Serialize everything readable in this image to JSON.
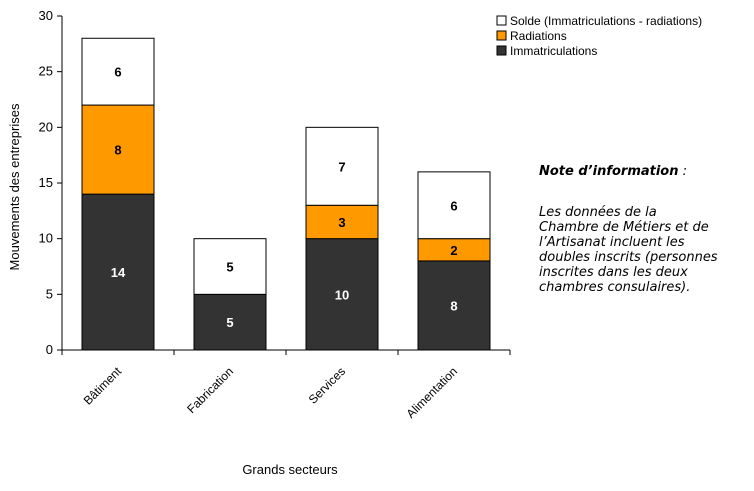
{
  "chart_data": {
    "type": "bar",
    "stacked": true,
    "categories": [
      "Bâtiment",
      "Fabrication",
      "Services",
      "Alimentation"
    ],
    "series": [
      {
        "name": "Immatriculations",
        "values": [
          14,
          5,
          10,
          8
        ],
        "color": "#333333",
        "label_color": "#ffffff"
      },
      {
        "name": "Radiations",
        "values": [
          8,
          0,
          3,
          2
        ],
        "color": "#ff9900",
        "label_color": "#000000"
      },
      {
        "name": "Solde (Immatriculations - radiations)",
        "values": [
          6,
          5,
          7,
          6
        ],
        "color": "#ffffff",
        "label_color": "#000000"
      }
    ],
    "title": "",
    "xlabel": "Grands secteurs",
    "ylabel": "Mouvements des entreprises",
    "ylim": [
      0,
      30
    ],
    "yticks": [
      0,
      5,
      10,
      15,
      20,
      25,
      30
    ],
    "grid": false,
    "legend_position": "top-right"
  },
  "note": {
    "title": "Note d’information",
    "title_suffix": " :",
    "lines": [
      "Les données de la",
      "Chambre de Métiers et de",
      "l’Artisanat incluent les",
      "doubles inscrits (personnes",
      "inscrites dans les deux",
      "chambres consulaires)."
    ]
  }
}
